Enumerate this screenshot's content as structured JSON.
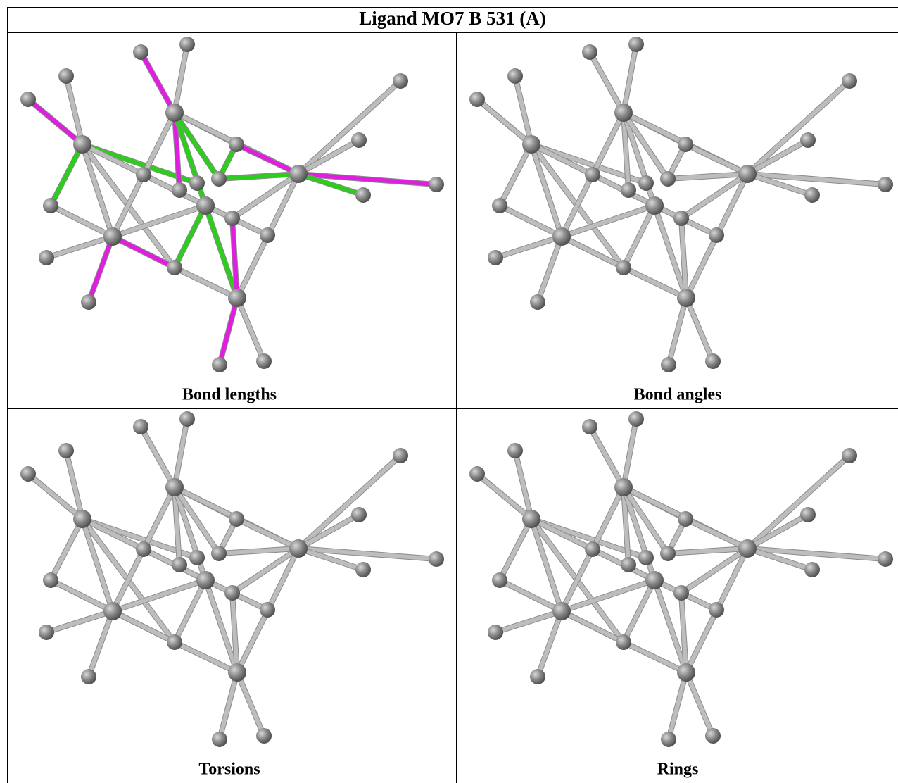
{
  "title": "Ligand MO7 B 531 (A)",
  "panels": [
    {
      "caption": "Bond lengths"
    },
    {
      "caption": "Bond angles"
    },
    {
      "caption": "Torsions"
    },
    {
      "caption": "Rings"
    }
  ]
}
